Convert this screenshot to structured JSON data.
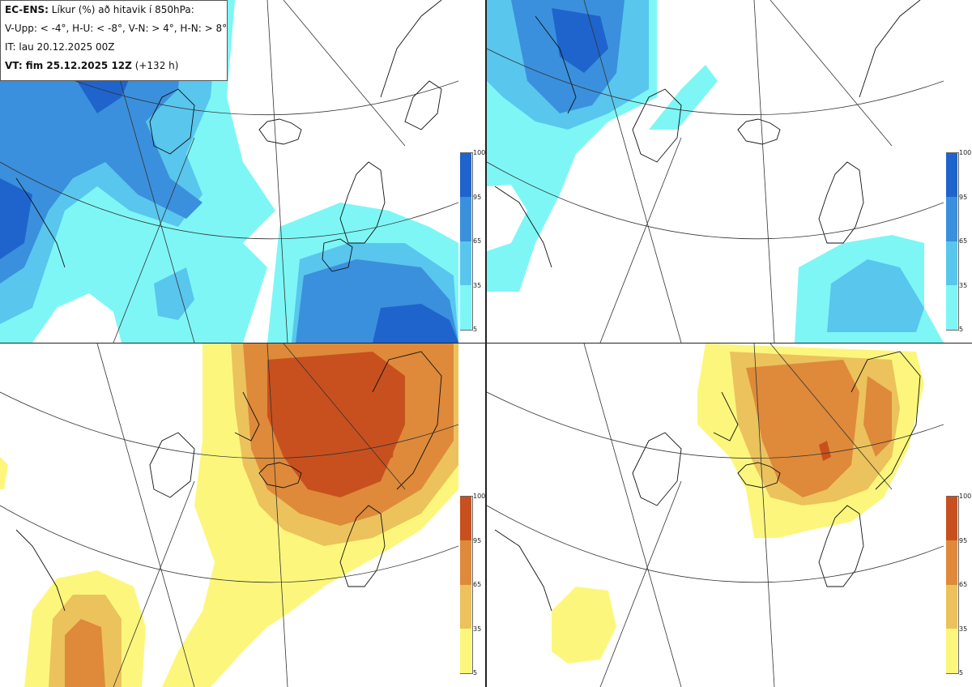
{
  "header": {
    "title_bold": "EC-ENS:",
    "title_rest": " Líkur (%) að hitavik í 850hPa:",
    "thresholds": "V-Upp: < -4°, H-U: < -8°, V-N: > 4°, H-N: > 8°",
    "init_time": "IT: lau 20.12.2025 00Z",
    "valid_bold": "VT: fim 25.12.2025 12Z",
    "valid_rest": " (+132 h)"
  },
  "legend_ticks": [
    "100",
    "95",
    "65",
    "35",
    "5"
  ],
  "colors": {
    "blue": [
      "#7ef6f6",
      "#59c6ee",
      "#3a90dc",
      "#1f64cc"
    ],
    "orange": [
      "#fcf77c",
      "#ecc25c",
      "#de8a3a",
      "#c8501e"
    ]
  },
  "panels": [
    {
      "id": "V-Upp",
      "palette": "blue"
    },
    {
      "id": "H-U",
      "palette": "blue"
    },
    {
      "id": "V-N",
      "palette": "orange"
    },
    {
      "id": "H-N",
      "palette": "orange"
    }
  ]
}
